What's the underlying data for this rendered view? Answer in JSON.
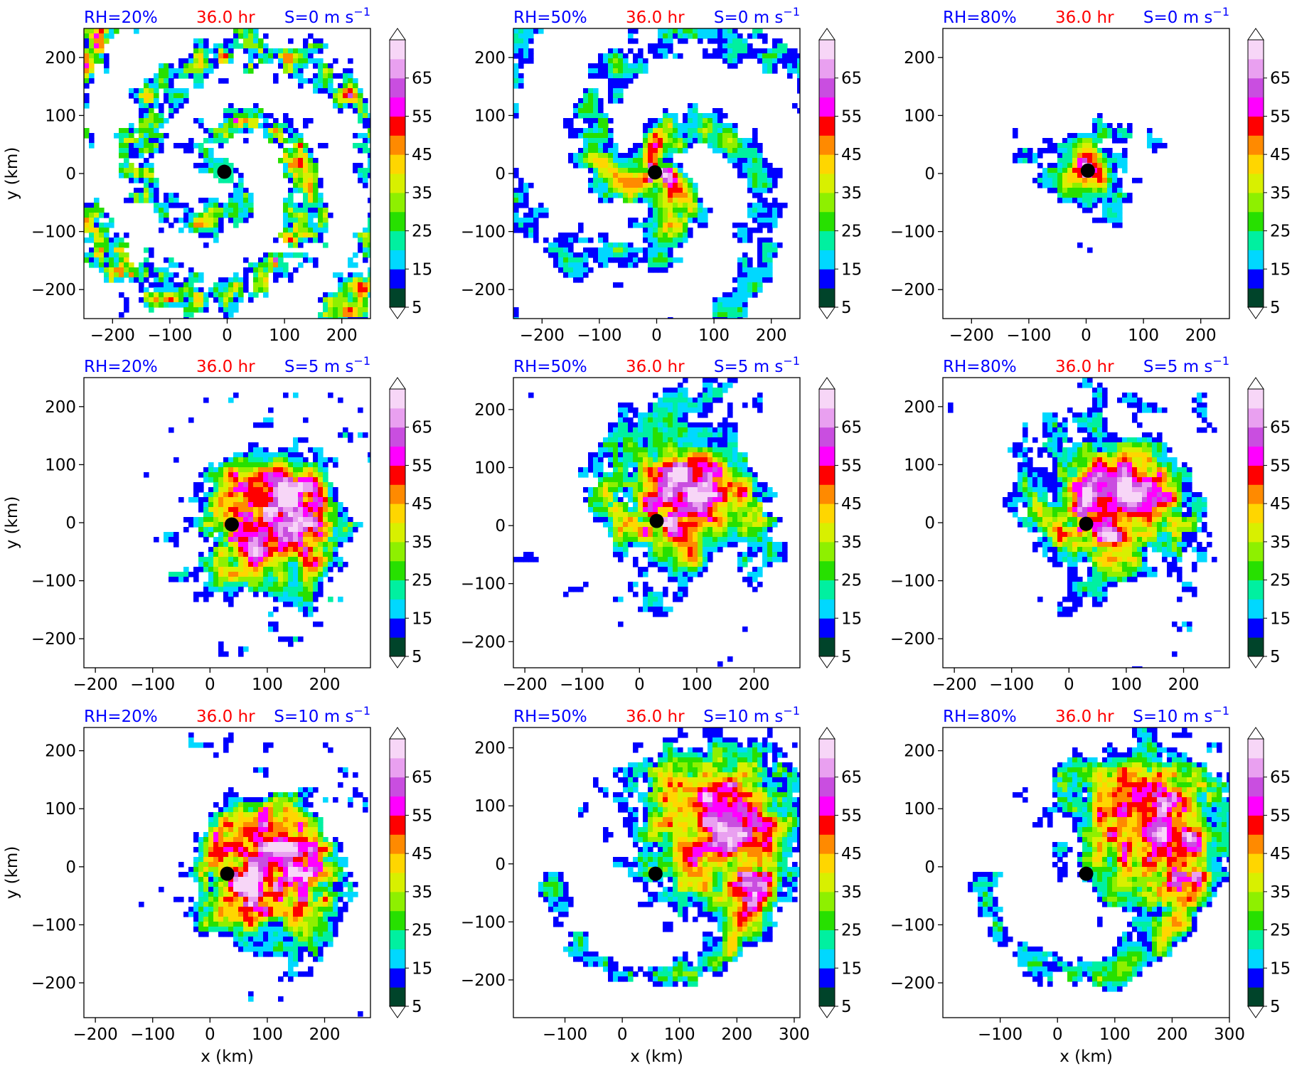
{
  "figure": {
    "colors": {
      "title_blue": "#0000ff",
      "title_red": "#ff0000",
      "center_marker": "#000000"
    },
    "colorbar": {
      "tick_labels": [
        "5",
        "15",
        "25",
        "35",
        "45",
        "55",
        "65"
      ],
      "levels": [
        5,
        10,
        15,
        20,
        25,
        30,
        35,
        40,
        45,
        50,
        55,
        60,
        65,
        70
      ],
      "extend": "both",
      "colors": [
        "#00442a",
        "#0000ff",
        "#00d8ff",
        "#00f0a0",
        "#27e000",
        "#8ef000",
        "#d8f000",
        "#ffd600",
        "#ff8a00",
        "#ff0000",
        "#ff00ff",
        "#c94ee0",
        "#e9a0f0",
        "#f7d6f7"
      ]
    },
    "x_axis_label": "x (km)",
    "y_axis_label": "y (km)"
  },
  "chart_data": [
    {
      "type": "heatmap",
      "variable_note": "",
      "rh_label": "RH=20%",
      "time_label": "36.0 hr",
      "shear_label": "S=0 m s",
      "shear_superscript": "−1",
      "xlim": [
        -250,
        250
      ],
      "ylim": [
        -250,
        250
      ],
      "xticks": [
        -200,
        -100,
        0,
        100,
        200
      ],
      "yticks": [
        -200,
        -100,
        0,
        100,
        200
      ],
      "center": [
        -5,
        3
      ],
      "pattern": "scattered_rings",
      "xlabel": "",
      "ylabel": "y (km)"
    },
    {
      "type": "heatmap",
      "rh_label": "RH=50%",
      "time_label": "36.0 hr",
      "shear_label": "S=0 m s",
      "shear_superscript": "−1",
      "xlim": [
        -250,
        250
      ],
      "ylim": [
        -250,
        250
      ],
      "xticks": [
        -200,
        -100,
        0,
        100,
        200
      ],
      "yticks": [
        -200,
        -100,
        0,
        100,
        200
      ],
      "center": [
        -3,
        2
      ],
      "pattern": "spiral",
      "xlabel": "",
      "ylabel": ""
    },
    {
      "type": "heatmap",
      "rh_label": "RH=80%",
      "time_label": "36.0 hr",
      "shear_label": "S=0 m s",
      "shear_superscript": "−1",
      "xlim": [
        -250,
        250
      ],
      "ylim": [
        -250,
        250
      ],
      "xticks": [
        -200,
        -100,
        0,
        100,
        200
      ],
      "yticks": [
        -200,
        -100,
        0,
        100,
        200
      ],
      "center": [
        3,
        5
      ],
      "pattern": "compact_core",
      "xlabel": "",
      "ylabel": ""
    },
    {
      "type": "heatmap",
      "rh_label": "RH=20%",
      "time_label": "36.0 hr",
      "shear_label": "S=5 m s",
      "shear_superscript": "−1",
      "xlim": [
        -220,
        280
      ],
      "ylim": [
        -250,
        250
      ],
      "xticks": [
        -200,
        -100,
        0,
        100,
        200
      ],
      "yticks": [
        -200,
        -100,
        0,
        100,
        200
      ],
      "center": [
        38,
        -3
      ],
      "pattern": "sheared",
      "xlabel": "",
      "ylabel": "y (km)"
    },
    {
      "type": "heatmap",
      "rh_label": "RH=50%",
      "time_label": "36.0 hr",
      "shear_label": "S=5 m s",
      "shear_superscript": "−1",
      "xlim": [
        -220,
        280
      ],
      "ylim": [
        -245,
        255
      ],
      "xticks": [
        -200,
        -100,
        0,
        100,
        200
      ],
      "yticks": [
        -200,
        -100,
        0,
        100,
        200
      ],
      "center": [
        30,
        8
      ],
      "pattern": "sheared_spiral",
      "xlabel": "",
      "ylabel": ""
    },
    {
      "type": "heatmap",
      "rh_label": "RH=80%",
      "time_label": "36.0 hr",
      "shear_label": "S=5 m s",
      "shear_superscript": "−1",
      "xlim": [
        -220,
        280
      ],
      "ylim": [
        -250,
        250
      ],
      "xticks": [
        -200,
        -100,
        0,
        100,
        200
      ],
      "yticks": [
        -200,
        -100,
        0,
        100,
        200
      ],
      "center": [
        30,
        -2
      ],
      "pattern": "sheared_spiral",
      "xlabel": "",
      "ylabel": ""
    },
    {
      "type": "heatmap",
      "rh_label": "RH=20%",
      "time_label": "36.0 hr",
      "shear_label": "S=10 m s",
      "shear_superscript": "−1",
      "xlim": [
        -220,
        280
      ],
      "ylim": [
        -260,
        240
      ],
      "xticks": [
        -200,
        -100,
        0,
        100,
        200
      ],
      "yticks": [
        -200,
        -100,
        0,
        100,
        200
      ],
      "center": [
        30,
        -12
      ],
      "pattern": "sheared_east",
      "xlabel": "x (km)",
      "ylabel": "y (km)"
    },
    {
      "type": "heatmap",
      "rh_label": "RH=50%",
      "time_label": "36.0 hr",
      "shear_label": "S=10 m s",
      "shear_superscript": "−1",
      "xlim": [
        -190,
        310
      ],
      "ylim": [
        -265,
        235
      ],
      "xticks": [
        -100,
        0,
        100,
        200,
        300
      ],
      "yticks": [
        -200,
        -100,
        0,
        100,
        200
      ],
      "center": [
        58,
        -17
      ],
      "pattern": "sheared_northeast",
      "xlabel": "x (km)",
      "ylabel": ""
    },
    {
      "type": "heatmap",
      "rh_label": "RH=80%",
      "time_label": "36.0 hr",
      "shear_label": "S=10 m s",
      "shear_superscript": "−1",
      "xlim": [
        -200,
        300
      ],
      "ylim": [
        -260,
        240
      ],
      "xticks": [
        -100,
        0,
        100,
        200,
        300
      ],
      "yticks": [
        -200,
        -100,
        0,
        100,
        200
      ],
      "center": [
        50,
        -12
      ],
      "pattern": "sheared_northeast",
      "xlabel": "x (km)",
      "ylabel": ""
    }
  ]
}
